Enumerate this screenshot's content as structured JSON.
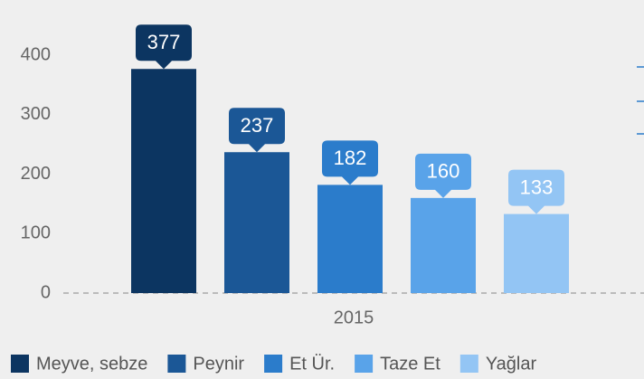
{
  "chart_data": {
    "type": "bar",
    "categories": [
      "2015"
    ],
    "series": [
      {
        "name": "Meyve, sebze",
        "color": "#0c3561",
        "values": [
          377
        ]
      },
      {
        "name": "Peynir",
        "color": "#1b5796",
        "values": [
          237
        ]
      },
      {
        "name": "Et Ür.",
        "color": "#2b7ccb",
        "values": [
          182
        ]
      },
      {
        "name": "Taze Et",
        "color": "#59a3e9",
        "values": [
          160
        ]
      },
      {
        "name": "Yağlar",
        "color": "#93c5f4",
        "values": [
          133
        ]
      }
    ],
    "ylim": [
      0,
      493
    ],
    "yticks": [
      0,
      100,
      200,
      300,
      400
    ],
    "legend": "bottom"
  }
}
